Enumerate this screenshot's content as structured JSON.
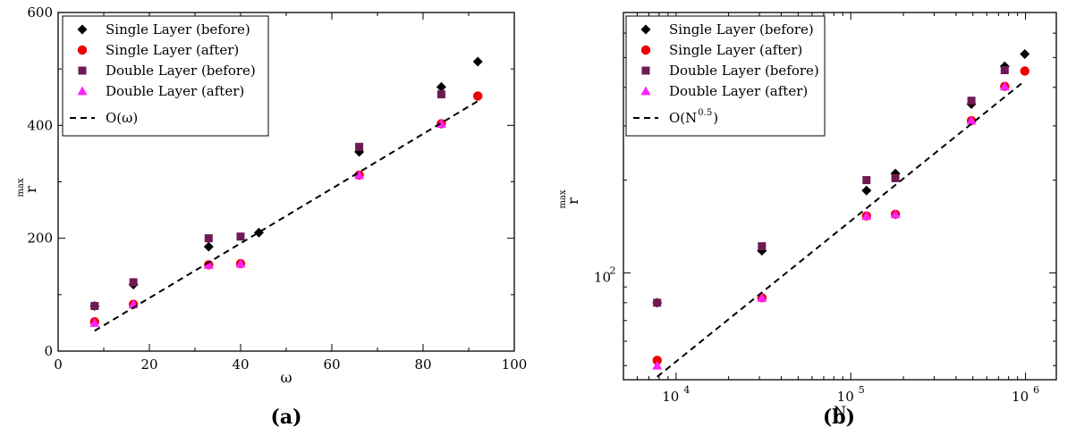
{
  "chart_data": [
    {
      "type": "scatter",
      "panel_label": "(a)",
      "xlabel": "ω",
      "ylabel_base": "r",
      "ylabel_sup": "max",
      "xlim": [
        0,
        100
      ],
      "ylim": [
        0,
        600
      ],
      "xticks": [
        0,
        20,
        40,
        60,
        80,
        100
      ],
      "yticks": [
        0,
        200,
        400,
        600
      ],
      "xscale": "linear",
      "yscale": "linear",
      "grid": false,
      "legend_position": "top-left",
      "series": [
        {
          "name": "Single Layer (before)",
          "marker": "diamond",
          "color": "#000000",
          "x": [
            8,
            16.5,
            33,
            44,
            66,
            84,
            92
          ],
          "y": [
            80,
            118,
            185,
            210,
            353,
            468,
            513
          ]
        },
        {
          "name": "Single Layer (after)",
          "marker": "circle",
          "color": "#ee0000",
          "x": [
            8,
            16.5,
            33,
            40,
            66,
            84,
            92
          ],
          "y": [
            52,
            83,
            153,
            155,
            312,
            403,
            452
          ]
        },
        {
          "name": "Double Layer (before)",
          "marker": "square",
          "color": "#6e1a55",
          "x": [
            8,
            16.5,
            33,
            40,
            66,
            84
          ],
          "y": [
            80,
            122,
            200,
            203,
            362,
            455
          ]
        },
        {
          "name": "Double Layer (after)",
          "marker": "triangle",
          "color": "#ff22ff",
          "x": [
            8,
            16.5,
            33,
            40,
            66,
            84
          ],
          "y": [
            50,
            83,
            153,
            155,
            312,
            403
          ]
        },
        {
          "name": "O(ω)",
          "type": "line",
          "dash": true,
          "color": "#000000",
          "x": [
            8,
            92
          ],
          "y": [
            36,
            443
          ]
        }
      ]
    },
    {
      "type": "scatter",
      "panel_label": "(b)",
      "xlabel": "N",
      "ylabel_base": "r",
      "ylabel_sup": "max",
      "xlim": [
        5000,
        1500000
      ],
      "ylim": [
        45,
        700
      ],
      "xticks": [
        10000,
        100000,
        1000000
      ],
      "xtick_base": "10",
      "xtick_exps": [
        "4",
        "5",
        "6"
      ],
      "yticks": [
        100
      ],
      "ytick_base": "10",
      "ytick_exps": [
        "2"
      ],
      "xscale": "log",
      "yscale": "log",
      "grid": false,
      "legend_position": "top-left",
      "series": [
        {
          "name": "Single Layer (before)",
          "marker": "diamond",
          "color": "#000000",
          "x": [
            7800,
            31000,
            123000,
            180000,
            490000,
            760000,
            990000
          ],
          "y": [
            80,
            118,
            185,
            210,
            353,
            468,
            513
          ]
        },
        {
          "name": "Single Layer (after)",
          "marker": "circle",
          "color": "#ee0000",
          "x": [
            7800,
            31000,
            123000,
            180000,
            490000,
            760000,
            990000
          ],
          "y": [
            52,
            83,
            153,
            155,
            312,
            403,
            452
          ]
        },
        {
          "name": "Double Layer (before)",
          "marker": "square",
          "color": "#6e1a55",
          "x": [
            7800,
            31000,
            123000,
            180000,
            490000,
            760000
          ],
          "y": [
            80,
            122,
            200,
            203,
            362,
            455
          ]
        },
        {
          "name": "Double Layer (after)",
          "marker": "triangle",
          "color": "#ff22ff",
          "x": [
            7800,
            31000,
            123000,
            180000,
            490000,
            760000
          ],
          "y": [
            50,
            83,
            153,
            155,
            312,
            403
          ]
        },
        {
          "name": "O(N",
          "name_sup": "0.5",
          "name_suffix": ")",
          "type": "line",
          "dash": true,
          "color": "#000000",
          "x": [
            7800,
            990000
          ],
          "y": [
            46,
            420
          ]
        }
      ]
    }
  ]
}
